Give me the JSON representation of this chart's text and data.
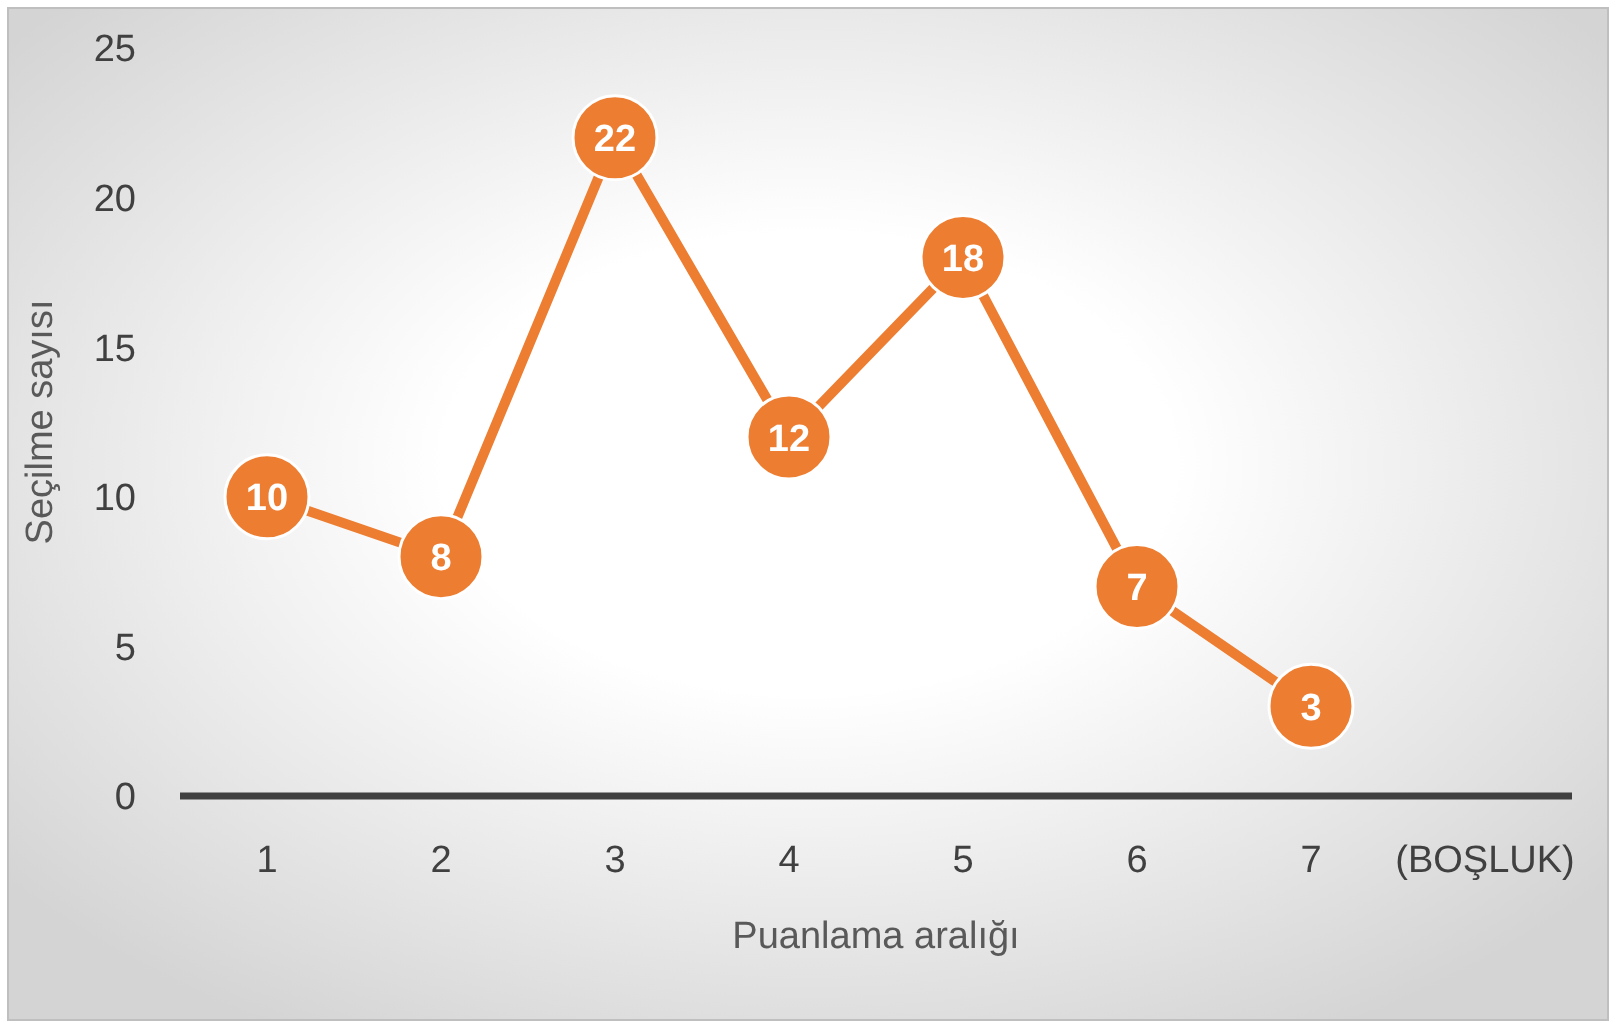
{
  "chart_data": {
    "type": "line",
    "xlabel": "Puanlama aralığı",
    "ylabel": "Seçilme sayısı",
    "categories": [
      "1",
      "2",
      "3",
      "4",
      "5",
      "6",
      "7",
      "(BOŞLUK)"
    ],
    "series": [
      {
        "color": "#ed7d31",
        "values": [
          10,
          8,
          22,
          12,
          18,
          7,
          3,
          null
        ]
      }
    ],
    "ylim": [
      0,
      25
    ],
    "yticks": [
      0,
      5,
      10,
      15,
      20,
      25
    ],
    "grid": false,
    "marker": "circle",
    "line_style": "solid",
    "data_labels": true
  }
}
